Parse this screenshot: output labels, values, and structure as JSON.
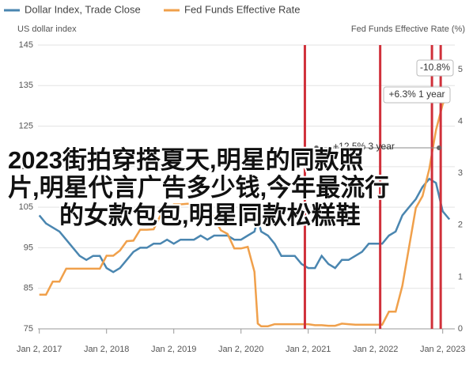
{
  "chart_data": {
    "type": "line",
    "y_label": "US dollar index",
    "y2_label": "Fed Funds Effective Rate (%)",
    "x": [
      2017.0,
      2017.1,
      2017.2,
      2017.3,
      2017.4,
      2017.5,
      2017.6,
      2017.7,
      2017.8,
      2017.9,
      2018.0,
      2018.1,
      2018.2,
      2018.3,
      2018.4,
      2018.5,
      2018.6,
      2018.7,
      2018.8,
      2018.9,
      2019.0,
      2019.1,
      2019.2,
      2019.3,
      2019.4,
      2019.5,
      2019.6,
      2019.7,
      2019.8,
      2019.9,
      2020.0,
      2020.1,
      2020.2,
      2020.25,
      2020.3,
      2020.4,
      2020.5,
      2020.6,
      2020.7,
      2020.8,
      2020.9,
      2021.0,
      2021.1,
      2021.2,
      2021.3,
      2021.4,
      2021.5,
      2021.6,
      2021.7,
      2021.8,
      2021.9,
      2022.0,
      2022.1,
      2022.2,
      2022.3,
      2022.4,
      2022.5,
      2022.6,
      2022.7,
      2022.8,
      2022.9,
      2023.0,
      2023.1
    ],
    "series": [
      {
        "name": "Dollar Index, Trade Close",
        "color": "#4a86b0",
        "axis": "y",
        "values": [
          103,
          101,
          100,
          99,
          97,
          95,
          93,
          92,
          93,
          93,
          90,
          89,
          90,
          92,
          94,
          95,
          95,
          96,
          96,
          97,
          96,
          97,
          97,
          97,
          98,
          97,
          98,
          98,
          98,
          97,
          97,
          98,
          99,
          102,
          99,
          98,
          96,
          93,
          93,
          93,
          91,
          90,
          90,
          93,
          91,
          90,
          92,
          92,
          93,
          94,
          96,
          96,
          96,
          98,
          99,
          103,
          105,
          107,
          110,
          112,
          111,
          104,
          102
        ]
      },
      {
        "name": "Fed Funds Effective Rate",
        "color": "#f0a04b",
        "axis": "y2",
        "values": [
          0.66,
          0.66,
          0.91,
          0.91,
          1.16,
          1.16,
          1.16,
          1.16,
          1.16,
          1.16,
          1.41,
          1.41,
          1.51,
          1.69,
          1.7,
          1.91,
          1.91,
          1.92,
          2.18,
          2.2,
          2.4,
          2.4,
          2.41,
          2.41,
          2.38,
          2.4,
          2.13,
          1.9,
          1.83,
          1.55,
          1.55,
          1.58,
          1.1,
          0.1,
          0.05,
          0.05,
          0.09,
          0.09,
          0.09,
          0.09,
          0.09,
          0.09,
          0.07,
          0.07,
          0.06,
          0.06,
          0.1,
          0.09,
          0.08,
          0.08,
          0.08,
          0.08,
          0.08,
          0.33,
          0.33,
          0.83,
          1.58,
          2.33,
          2.56,
          3.08,
          3.83,
          4.33,
          4.58
        ]
      }
    ],
    "xlim": [
      2016.98,
      2023.18
    ],
    "xticks": [
      {
        "value": 2017,
        "label": "Jan 2, 2017"
      },
      {
        "value": 2018,
        "label": "Jan 2, 2018"
      },
      {
        "value": 2019,
        "label": "Jan 2, 2019"
      },
      {
        "value": 2020,
        "label": "Jan 2, 2020"
      },
      {
        "value": 2021,
        "label": "Jan 2, 2021"
      },
      {
        "value": 2022,
        "label": "Jan 2, 2022"
      },
      {
        "value": 2023,
        "label": "Jan 2, 2023"
      }
    ],
    "ylim": [
      75,
      145
    ],
    "yticks": [
      75,
      85,
      95,
      105,
      115,
      125,
      135,
      145
    ],
    "y2lim": [
      0,
      5.47
    ],
    "y2ticks": [
      0,
      1,
      2,
      3,
      4,
      5
    ],
    "grid": true,
    "vlines": {
      "color": "#d0303a",
      "x": [
        2020.95,
        2022.07,
        2022.84,
        2022.97
      ]
    },
    "annotations": [
      "+12.5% 3 year",
      "+6.3% 1 year",
      "-10.8%"
    ],
    "overlay_text": [
      "2023街拍穿搭夏天,明星的同款照",
      "片,明星代言广告多少钱,今年最流行",
      "的女款包包,明星同款松糕鞋"
    ]
  }
}
